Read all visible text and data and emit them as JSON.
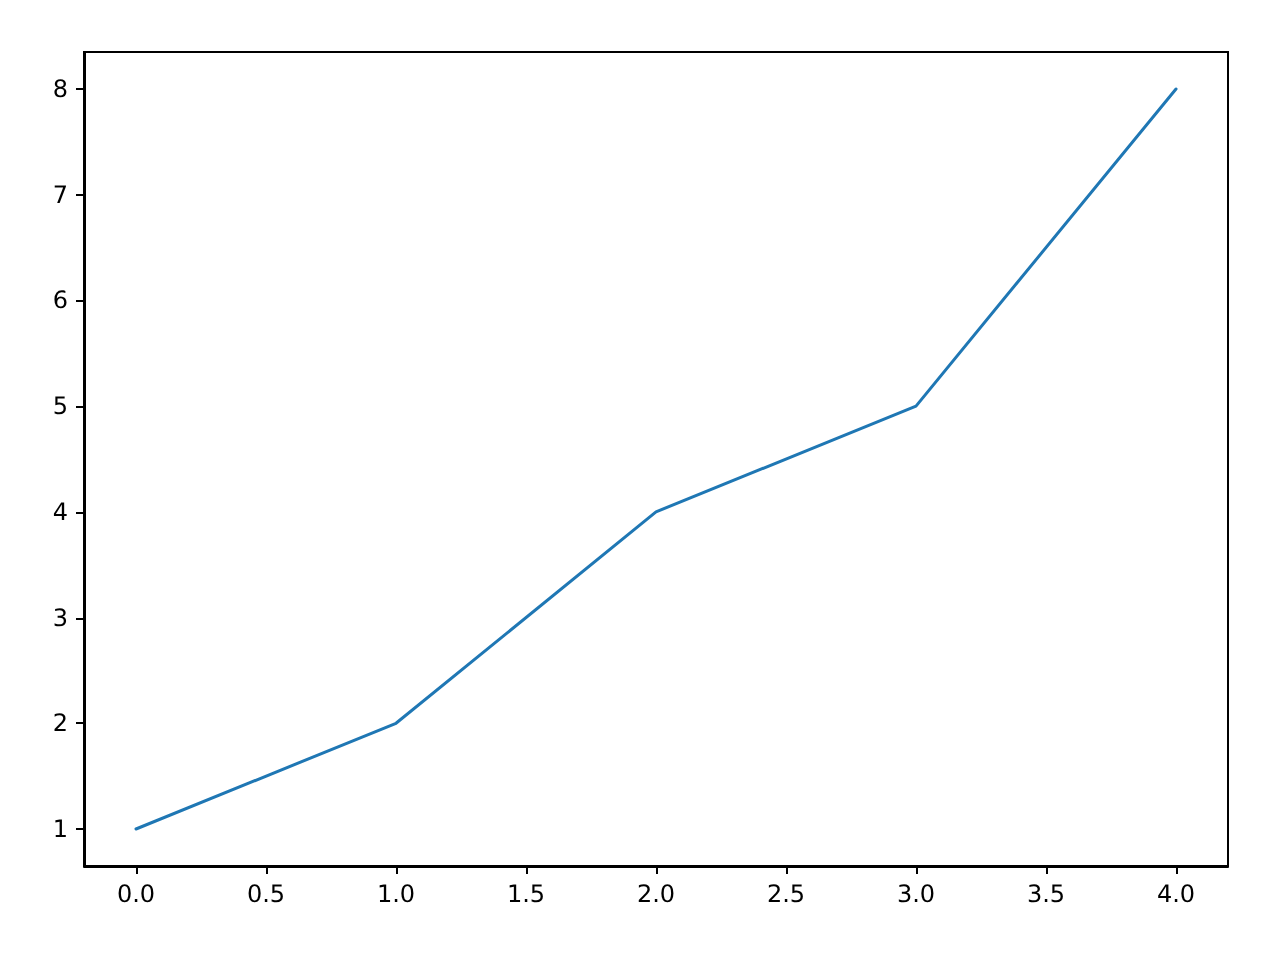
{
  "chart_data": {
    "type": "line",
    "x": [
      0,
      1,
      2,
      3,
      4
    ],
    "series": [
      {
        "color": "#1f77b4",
        "values": [
          1,
          2,
          4,
          5,
          8
        ]
      }
    ],
    "xlim": [
      -0.2,
      4.2
    ],
    "ylim": [
      0.65,
      8.35
    ],
    "xticks": [
      {
        "value": 0,
        "label": "0.0"
      },
      {
        "value": 0.5,
        "label": "0.5"
      },
      {
        "value": 1,
        "label": "1.0"
      },
      {
        "value": 1.5,
        "label": "1.5"
      },
      {
        "value": 2,
        "label": "2.0"
      },
      {
        "value": 2.5,
        "label": "2.5"
      },
      {
        "value": 3,
        "label": "3.0"
      },
      {
        "value": 3.5,
        "label": "3.5"
      },
      {
        "value": 4,
        "label": "4.0"
      }
    ],
    "yticks": [
      1,
      2,
      3,
      4,
      5,
      6,
      7,
      8
    ],
    "grid": false,
    "marker": "none",
    "line_style": "solid"
  }
}
